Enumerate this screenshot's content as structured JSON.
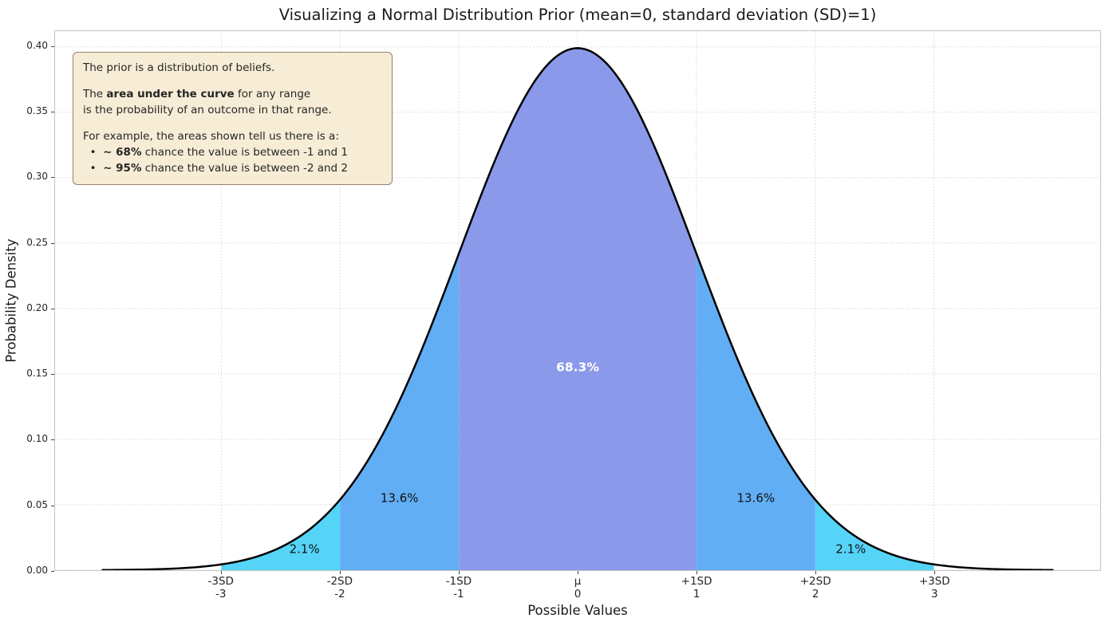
{
  "title": "Visualizing a Normal Distribution Prior (mean=0, standard deviation (SD)=1)",
  "axes": {
    "xlabel": "Possible Values",
    "ylabel": "Probability Density"
  },
  "chart_data": {
    "type": "area",
    "title": "Visualizing a Normal Distribution Prior (mean=0, standard deviation (SD)=1)",
    "xlabel": "Possible Values",
    "ylabel": "Probability Density",
    "grid": true,
    "legend": "none",
    "distribution": {
      "name": "normal",
      "mean": 0,
      "sd": 1,
      "peak_density": 0.3989
    },
    "curve_color": "#000000",
    "curve_range": [
      -4,
      4
    ],
    "x_axis": {
      "min": -4.4,
      "max": 4.4
    },
    "y_axis": {
      "min": 0,
      "max": 0.412,
      "ticks": [
        "0.00",
        "0.05",
        "0.10",
        "0.15",
        "0.20",
        "0.25",
        "0.30",
        "0.35",
        "0.40"
      ]
    },
    "x_ticks": [
      {
        "sd_label": "-3SD",
        "value_label": "-3",
        "x": -3
      },
      {
        "sd_label": "-2SD",
        "value_label": "-2",
        "x": -2
      },
      {
        "sd_label": "-1SD",
        "value_label": "-1",
        "x": -1
      },
      {
        "sd_label": "μ",
        "value_label": "0",
        "x": 0
      },
      {
        "sd_label": "+1SD",
        "value_label": "1",
        "x": 1
      },
      {
        "sd_label": "+2SD",
        "value_label": "2",
        "x": 2
      },
      {
        "sd_label": "+3SD",
        "value_label": "3",
        "x": 3
      }
    ],
    "regions": [
      {
        "from": -3,
        "to": -2,
        "area_pct": "2.1%",
        "color": "#55d4f7",
        "label": {
          "text": "2.1%",
          "x": -2.3,
          "y": 0.013,
          "color": "#111111",
          "bold": false
        }
      },
      {
        "from": -2,
        "to": -1,
        "area_pct": "13.6%",
        "color": "#62aef5",
        "label": {
          "text": "13.6%",
          "x": -1.5,
          "y": 0.052,
          "color": "#111111",
          "bold": false
        }
      },
      {
        "from": -1,
        "to": 1,
        "area_pct": "68.3%",
        "color": "#8a99e9",
        "label": {
          "text": "68.3%",
          "x": 0,
          "y": 0.152,
          "color": "#ffffff",
          "bold": true
        }
      },
      {
        "from": 1,
        "to": 2,
        "area_pct": "13.6%",
        "color": "#62aef5",
        "label": {
          "text": "13.6%",
          "x": 1.5,
          "y": 0.052,
          "color": "#111111",
          "bold": false
        }
      },
      {
        "from": 2,
        "to": 3,
        "area_pct": "2.1%",
        "color": "#55d4f7",
        "label": {
          "text": "2.1%",
          "x": 2.3,
          "y": 0.013,
          "color": "#111111",
          "bold": false
        }
      }
    ]
  },
  "annotation": {
    "bg": "#f7edd6",
    "border": "#8f8268",
    "lines": [
      [
        {
          "t": "The prior is a distribution of beliefs.",
          "b": false
        }
      ],
      [],
      [
        {
          "t": "The ",
          "b": false
        },
        {
          "t": "area under the curve",
          "b": true
        },
        {
          "t": " for any range",
          "b": false
        }
      ],
      [
        {
          "t": "is the probability of an outcome in that range.",
          "b": false
        }
      ],
      [],
      [
        {
          "t": "For example, the areas shown tell us there is a:",
          "b": false
        }
      ],
      [
        {
          "t": "  •  ",
          "b": false
        },
        {
          "t": "~ 68%",
          "b": true
        },
        {
          "t": " chance the value is between -1 and 1",
          "b": false
        }
      ],
      [
        {
          "t": "  •  ",
          "b": false
        },
        {
          "t": "~ 95%",
          "b": true
        },
        {
          "t": " chance the value is between -2 and 2",
          "b": false
        }
      ]
    ]
  }
}
